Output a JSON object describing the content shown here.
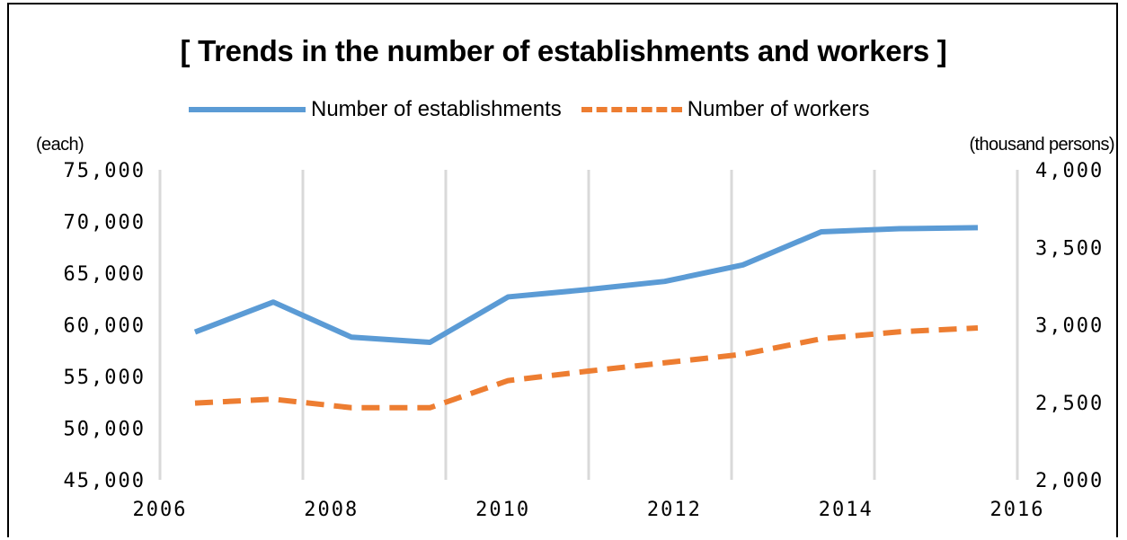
{
  "chart_data": {
    "type": "line",
    "title": "[ Trends in the number of establishments and workers ]",
    "x": [
      "2006",
      "2007",
      "2008",
      "2009",
      "2010",
      "2011",
      "2012",
      "2013",
      "2014",
      "2015",
      "2016"
    ],
    "x_tick_labels": [
      "2006",
      "2008",
      "2010",
      "2012",
      "2014",
      "2016"
    ],
    "series": [
      {
        "name": "Number of establishments",
        "axis": "left",
        "color": "#5b9bd5",
        "style": "solid",
        "values": [
          59300,
          62200,
          58800,
          58300,
          62700,
          63400,
          64200,
          65800,
          69000,
          69300,
          69400
        ]
      },
      {
        "name": "Number of workers",
        "axis": "right",
        "color": "#ed7d31",
        "style": "dashed",
        "values": [
          2495,
          2520,
          2465,
          2465,
          2640,
          2700,
          2755,
          2810,
          2910,
          2955,
          2980
        ]
      }
    ],
    "ylabel_left": "(each)",
    "ylabel_right": "(thousand persons)",
    "ylim_left": [
      45000,
      75000
    ],
    "ylim_right": [
      2000,
      4000
    ],
    "yticks_left": [
      "75,000",
      "70,000",
      "65,000",
      "60,000",
      "55,000",
      "50,000",
      "45,000"
    ],
    "yticks_right": [
      "4,000",
      "3,500",
      "3,000",
      "2,500",
      "2,000"
    ],
    "grid": "vertical",
    "legend_position": "top"
  }
}
